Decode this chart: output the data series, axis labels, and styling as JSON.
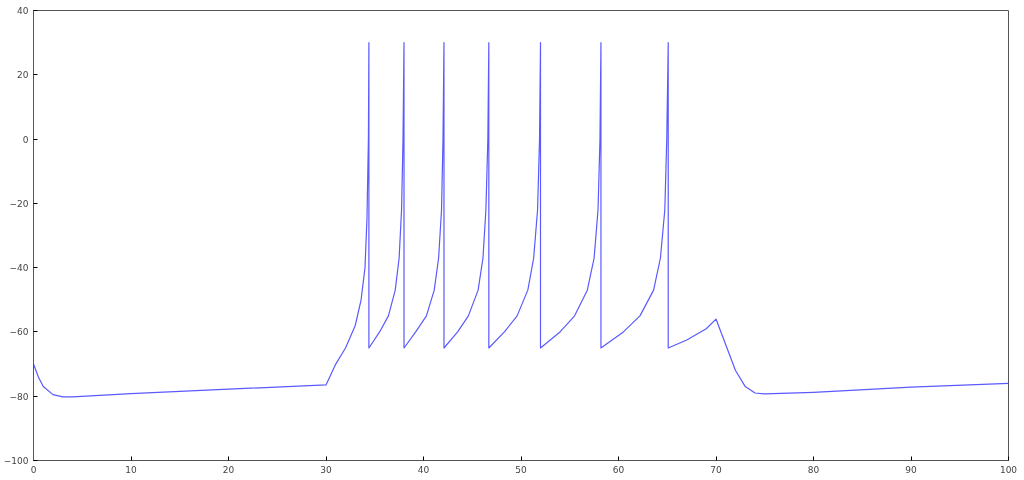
{
  "chart_data": {
    "type": "line",
    "xlim": [
      0,
      100
    ],
    "ylim": [
      -100,
      40
    ],
    "xticks": [
      0,
      10,
      20,
      30,
      40,
      50,
      60,
      70,
      80,
      90,
      100
    ],
    "yticks": [
      -100,
      -80,
      -60,
      -40,
      -20,
      0,
      20,
      40
    ],
    "grid": false,
    "series": [
      {
        "color": "#5a5aff",
        "x": [
          0,
          0.5,
          1,
          2,
          3,
          4,
          10,
          20,
          30,
          31,
          32,
          33,
          33.6,
          34.0,
          34.2,
          34.35,
          34.4,
          34.4,
          35.5,
          36.4,
          37.1,
          37.5,
          37.75,
          37.9,
          38.0,
          38.0,
          39.2,
          40.3,
          41.1,
          41.55,
          41.85,
          42.0,
          42.1,
          42.1,
          43.5,
          44.6,
          45.6,
          46.1,
          46.4,
          46.6,
          46.7,
          46.7,
          48.3,
          49.6,
          50.7,
          51.3,
          51.7,
          51.9,
          52.0,
          52.0,
          54,
          55.5,
          56.8,
          57.5,
          57.9,
          58.1,
          58.2,
          58.2,
          60.5,
          62.2,
          63.6,
          64.3,
          64.75,
          64.95,
          65.1,
          65.1,
          67,
          69,
          70,
          71,
          72,
          73,
          74,
          75,
          80,
          90,
          100
        ],
        "values": [
          -70,
          -74,
          -77,
          -79.5,
          -80.2,
          -80.2,
          -79.2,
          -77.8,
          -76.5,
          -70,
          -65,
          -58,
          -50,
          -40,
          -25,
          0,
          30,
          -65,
          -60,
          -55,
          -47,
          -37,
          -22,
          0,
          30,
          -65,
          -60,
          -55,
          -47,
          -37,
          -22,
          0,
          30,
          -65,
          -60,
          -55,
          -47,
          -37,
          -22,
          0,
          30,
          -65,
          -60,
          -55,
          -47,
          -37,
          -22,
          0,
          30,
          -65,
          -60,
          -55,
          -47,
          -37,
          -22,
          0,
          30,
          -65,
          -60,
          -55,
          -47,
          -37,
          -22,
          0,
          30,
          -65,
          -62.5,
          -59,
          -56,
          -64,
          -72,
          -77,
          -79,
          -79.3,
          -78.8,
          -77.2,
          -76.0
        ]
      }
    ]
  }
}
